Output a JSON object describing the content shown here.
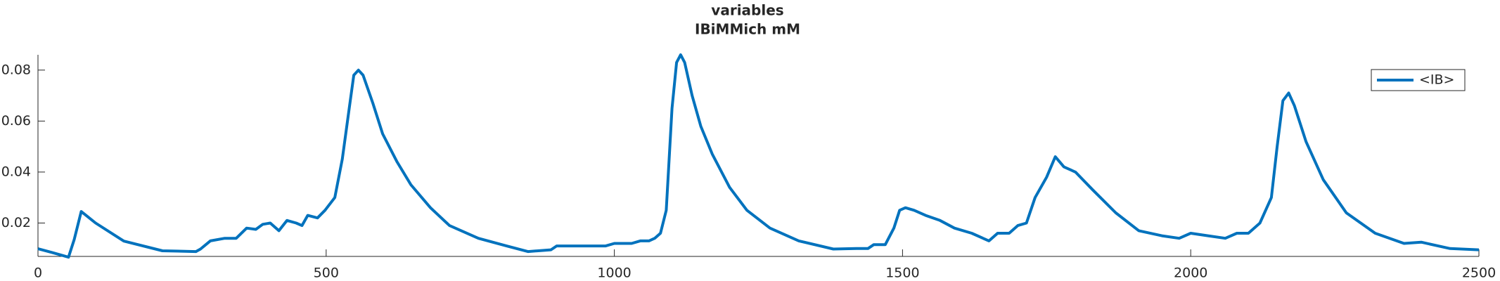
{
  "chart_data": {
    "type": "line",
    "title": "variables",
    "subtitle": "IBiMMich mM",
    "x": [
      0,
      25,
      53,
      63,
      75,
      100,
      149,
      216,
      274,
      282,
      299,
      324,
      344,
      362,
      378,
      390,
      403,
      418,
      432,
      448,
      458,
      468,
      485,
      498,
      515,
      528,
      540,
      548,
      556,
      564,
      581,
      598,
      623,
      647,
      681,
      714,
      764,
      813,
      850,
      890,
      900,
      950,
      985,
      1000,
      1030,
      1045,
      1060,
      1070,
      1080,
      1090,
      1095,
      1100,
      1108,
      1115,
      1122,
      1135,
      1150,
      1170,
      1200,
      1230,
      1270,
      1320,
      1380,
      1420,
      1440,
      1450,
      1470,
      1485,
      1495,
      1505,
      1520,
      1540,
      1565,
      1590,
      1620,
      1650,
      1665,
      1685,
      1700,
      1715,
      1730,
      1750,
      1765,
      1780,
      1800,
      1830,
      1870,
      1910,
      1950,
      1980,
      2000,
      2030,
      2060,
      2080,
      2100,
      2120,
      2140,
      2150,
      2160,
      2170,
      2180,
      2200,
      2230,
      2270,
      2320,
      2370,
      2400,
      2450,
      2500
    ],
    "series": [
      {
        "name": "<IB>",
        "color": "#0072bd",
        "values": [
          0.0099,
          0.0084,
          0.0066,
          0.0136,
          0.0245,
          0.02,
          0.0129,
          0.0091,
          0.0088,
          0.0098,
          0.013,
          0.014,
          0.014,
          0.018,
          0.0175,
          0.0195,
          0.02,
          0.017,
          0.021,
          0.02,
          0.019,
          0.023,
          0.022,
          0.025,
          0.03,
          0.045,
          0.065,
          0.078,
          0.08,
          0.078,
          0.067,
          0.055,
          0.044,
          0.035,
          0.026,
          0.019,
          0.014,
          0.011,
          0.0088,
          0.0095,
          0.011,
          0.011,
          0.011,
          0.012,
          0.012,
          0.013,
          0.013,
          0.014,
          0.016,
          0.025,
          0.045,
          0.065,
          0.083,
          0.086,
          0.083,
          0.07,
          0.058,
          0.047,
          0.034,
          0.025,
          0.018,
          0.013,
          0.0098,
          0.01,
          0.01,
          0.0115,
          0.0115,
          0.018,
          0.025,
          0.026,
          0.025,
          0.023,
          0.021,
          0.018,
          0.016,
          0.013,
          0.016,
          0.016,
          0.019,
          0.02,
          0.03,
          0.038,
          0.046,
          0.042,
          0.04,
          0.033,
          0.024,
          0.017,
          0.015,
          0.014,
          0.016,
          0.015,
          0.014,
          0.016,
          0.016,
          0.02,
          0.03,
          0.05,
          0.068,
          0.071,
          0.066,
          0.052,
          0.037,
          0.024,
          0.016,
          0.012,
          0.0125,
          0.01,
          0.0095
        ]
      }
    ],
    "xlim": [
      0,
      2500
    ],
    "xticks": [
      0,
      500,
      1000,
      1500,
      2000,
      2500
    ],
    "ylim": [
      0.0069,
      0.086
    ],
    "yticks": [
      0.02,
      0.04,
      0.06,
      0.08
    ],
    "legend": "top-right"
  }
}
